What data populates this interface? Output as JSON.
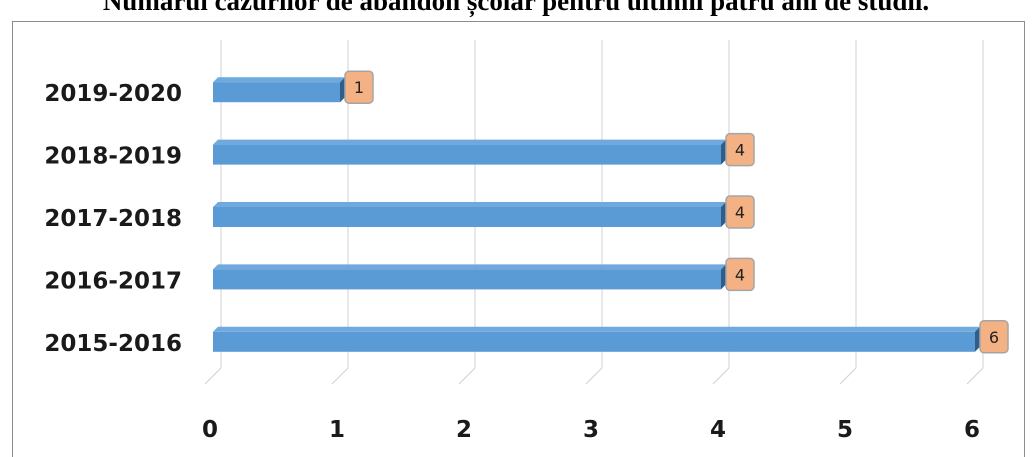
{
  "chart_data": {
    "type": "bar",
    "orientation": "horizontal",
    "title": "Numărul cazurilor de abandon școlar pentru ultimii patru ani de studii.",
    "categories": [
      "2019-2020",
      "2018-2019",
      "2017-2018",
      "2016-2017",
      "2015-2016"
    ],
    "values": [
      1,
      4,
      4,
      4,
      6
    ],
    "xlim": [
      0,
      6
    ],
    "xticks": [
      "0",
      "1",
      "2",
      "3",
      "4",
      "5",
      "6"
    ],
    "xlabel": "",
    "ylabel": "",
    "grid": true,
    "legend": "none",
    "data_labels": true,
    "colors": {
      "bar_front": "#5b9bd5",
      "bar_top": "#6fa9de",
      "bar_shade": "#2e5f8c",
      "label_fill": "#f4b183",
      "label_border": "#a5a5a5",
      "grid": "#d0d0d0"
    }
  }
}
